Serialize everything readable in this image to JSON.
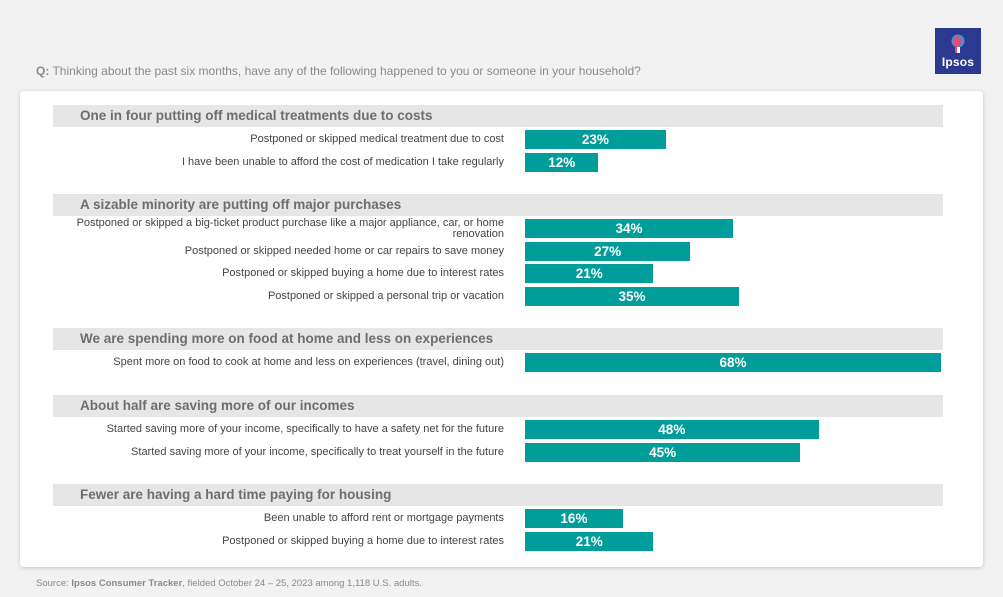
{
  "question": {
    "prefix": "Q:",
    "text": "Thinking about the past six months, have any of the following happened to you or someone in your household?"
  },
  "logo": {
    "text": "Ipsos"
  },
  "colors": {
    "bar": "#009d9a",
    "header_bg": "#e6e6e6",
    "logo_bg": "#2b3990"
  },
  "chart_data": {
    "type": "bar",
    "orientation": "horizontal",
    "xlim": [
      0,
      100
    ],
    "value_suffix": "%",
    "sections": [
      {
        "title": "One in four putting off medical treatments due to costs",
        "items": [
          {
            "label": "Postponed or skipped medical treatment due to cost",
            "value": 23,
            "value_label": "23%"
          },
          {
            "label": "I have been unable to afford the cost of medication I take regularly",
            "value": 12,
            "value_label": "12%"
          }
        ]
      },
      {
        "title": "A sizable minority are putting off major purchases",
        "items": [
          {
            "label": "Postponed or skipped a big-ticket product purchase like a major appliance, car, or home renovation",
            "value": 34,
            "value_label": "34%"
          },
          {
            "label": "Postponed or skipped needed home or car repairs to save money",
            "value": 27,
            "value_label": "27%"
          },
          {
            "label": "Postponed or skipped buying a home due to interest rates",
            "value": 21,
            "value_label": "21%"
          },
          {
            "label": "Postponed or skipped a personal trip or vacation",
            "value": 35,
            "value_label": "35%"
          }
        ]
      },
      {
        "title": "We are spending more on food at home and less on experiences",
        "items": [
          {
            "label": "Spent more on food to cook at home and less on experiences (travel, dining out)",
            "value": 68,
            "value_label": "68%"
          }
        ]
      },
      {
        "title": "About half are saving more of our incomes",
        "items": [
          {
            "label": "Started saving more of your income, specifically to have a safety net for the future",
            "value": 48,
            "value_label": "48%"
          },
          {
            "label": "Started saving more of your income, specifically to treat yourself in the future",
            "value": 45,
            "value_label": "45%"
          }
        ]
      },
      {
        "title": "Fewer are having a hard time paying for housing",
        "items": [
          {
            "label": "Been unable to afford rent or mortgage payments",
            "value": 16,
            "value_label": "16%"
          },
          {
            "label": "Postponed or skipped buying a home due to interest rates",
            "value": 21,
            "value_label": "21%"
          }
        ]
      }
    ]
  },
  "source": {
    "prefix": "Source: ",
    "bold": "Ipsos Consumer Tracker",
    "rest": ", fielded October 24 – 25, 2023 among 1,118 U.S. adults."
  }
}
